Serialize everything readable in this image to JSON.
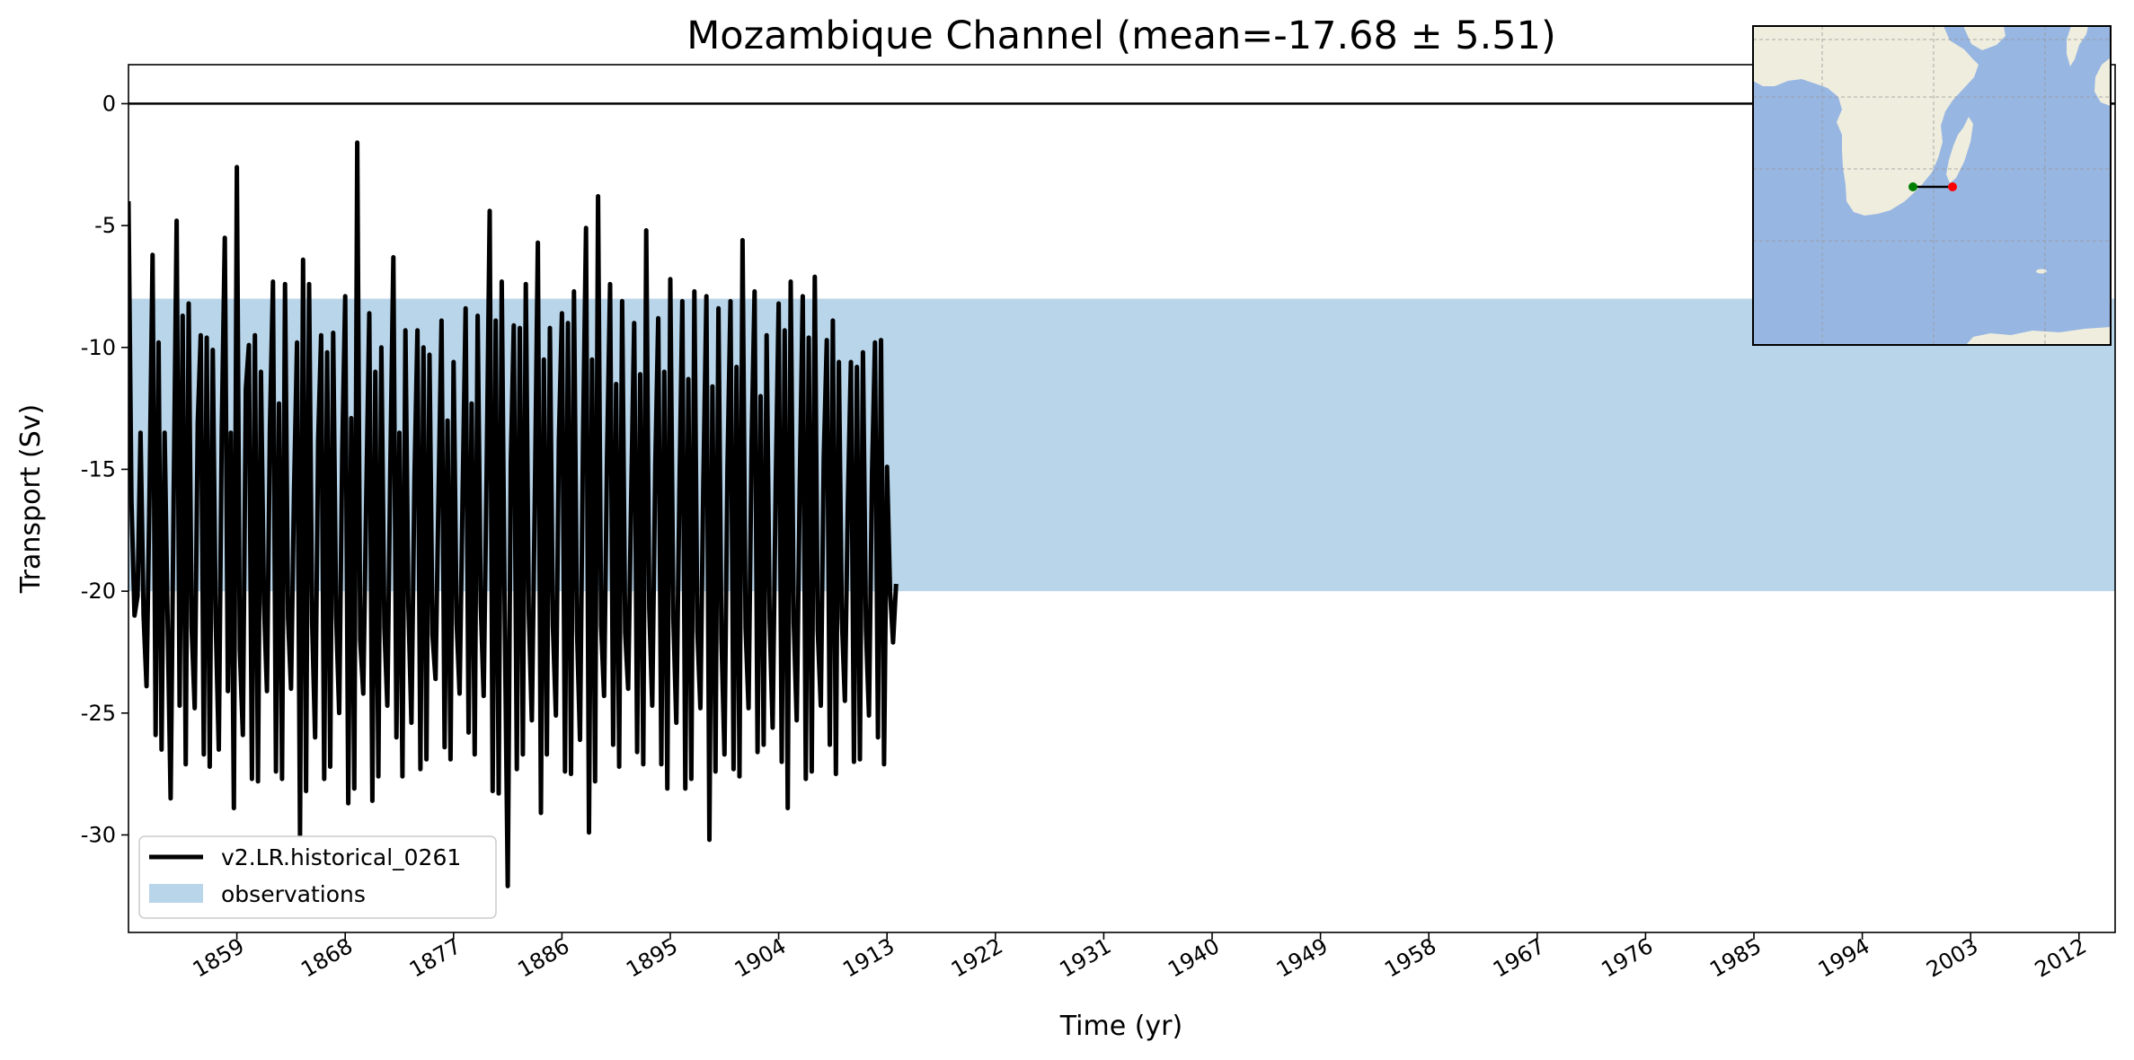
{
  "chart_data": {
    "type": "line",
    "title": "Mozambique Channel (mean=-17.68 ± 5.51)",
    "xlabel": "Time (yr)",
    "ylabel": "Transport (Sv)",
    "xlim": [
      1850,
      2015
    ],
    "ylim": [
      -34,
      1.6
    ],
    "y_ticks": [
      0,
      -5,
      -10,
      -15,
      -20,
      -25,
      -30
    ],
    "x_ticks": [
      1859,
      1868,
      1877,
      1886,
      1895,
      1904,
      1913,
      1922,
      1931,
      1940,
      1949,
      1958,
      1967,
      1976,
      1985,
      1994,
      2003,
      2012
    ],
    "grid": false,
    "legend_location": "lower-left",
    "reference_line": {
      "y": 0,
      "color": "#000000"
    },
    "observation_band": {
      "name": "observations",
      "y_range": [
        -8,
        -20
      ],
      "color": "#b9d5ea"
    },
    "series": [
      {
        "name": "v2.LR.historical_0261",
        "color": "#000000",
        "start_year": 1850,
        "samples_per_year": 4,
        "values": [
          -4.0,
          -16.3,
          -21.0,
          -20.2,
          -13.5,
          -21.0,
          -23.9,
          -16.0,
          -6.2,
          -25.9,
          -9.8,
          -26.5,
          -13.5,
          -21.3,
          -28.5,
          -16.1,
          -4.8,
          -24.7,
          -8.7,
          -27.1,
          -8.2,
          -21.5,
          -24.8,
          -13.1,
          -9.5,
          -26.7,
          -9.6,
          -27.2,
          -10.1,
          -21.3,
          -26.5,
          -13.4,
          -5.5,
          -24.1,
          -13.5,
          -28.9,
          -2.6,
          -22.4,
          -25.9,
          -11.7,
          -9.9,
          -27.7,
          -9.5,
          -27.8,
          -11.0,
          -20.5,
          -24.1,
          -13.3,
          -7.3,
          -27.4,
          -12.3,
          -27.7,
          -7.4,
          -21.1,
          -24.0,
          -15.8,
          -9.8,
          -30.0,
          -6.4,
          -28.2,
          -7.4,
          -21.3,
          -26.0,
          -13.8,
          -9.5,
          -27.7,
          -10.2,
          -27.2,
          -9.4,
          -21.0,
          -25.0,
          -14.3,
          -7.9,
          -28.7,
          -12.9,
          -28.1,
          -1.6,
          -22.0,
          -24.2,
          -16.2,
          -8.6,
          -28.6,
          -11.0,
          -27.6,
          -10.0,
          -21.5,
          -24.7,
          -14.9,
          -6.3,
          -26.0,
          -13.5,
          -27.6,
          -9.3,
          -20.6,
          -25.4,
          -15.3,
          -9.3,
          -27.3,
          -10.0,
          -26.9,
          -10.3,
          -21.8,
          -23.6,
          -16.0,
          -8.9,
          -26.4,
          -13.0,
          -26.9,
          -10.6,
          -21.3,
          -24.2,
          -16.0,
          -8.4,
          -25.8,
          -12.3,
          -26.7,
          -8.7,
          -20.5,
          -24.3,
          -15.1,
          -4.4,
          -28.2,
          -8.9,
          -28.3,
          -7.3,
          -21.3,
          -32.1,
          -14.7,
          -9.1,
          -27.3,
          -9.2,
          -26.7,
          -7.4,
          -20.9,
          -25.3,
          -16.0,
          -5.7,
          -29.1,
          -10.5,
          -26.7,
          -9.2,
          -21.4,
          -25.1,
          -13.8,
          -8.6,
          -27.4,
          -9.0,
          -27.5,
          -7.7,
          -21.6,
          -26.1,
          -13.7,
          -5.1,
          -29.9,
          -10.5,
          -27.8,
          -3.8,
          -21.4,
          -24.3,
          -14.5,
          -7.4,
          -26.3,
          -11.5,
          -27.2,
          -8.1,
          -21.7,
          -24.0,
          -16.1,
          -9.0,
          -26.6,
          -11.1,
          -27.1,
          -5.2,
          -20.7,
          -24.7,
          -14.8,
          -8.8,
          -27.1,
          -11.0,
          -28.1,
          -7.2,
          -21.1,
          -25.4,
          -16.0,
          -8.1,
          -28.1,
          -11.3,
          -27.7,
          -7.7,
          -21.6,
          -24.8,
          -15.5,
          -7.9,
          -30.2,
          -11.6,
          -27.4,
          -8.4,
          -21.9,
          -26.7,
          -15.0,
          -8.1,
          -27.3,
          -10.8,
          -27.6,
          -5.6,
          -21.5,
          -24.8,
          -13.9,
          -7.7,
          -26.6,
          -12.0,
          -26.3,
          -9.5,
          -21.2,
          -25.6,
          -15.7,
          -8.2,
          -27.0,
          -9.3,
          -28.9,
          -7.3,
          -21.3,
          -25.3,
          -15.6,
          -7.9,
          -27.7,
          -9.6,
          -27.4,
          -7.1,
          -21.6,
          -24.7,
          -14.5,
          -9.7,
          -26.3,
          -8.9,
          -27.5,
          -10.6,
          -21.1,
          -24.5,
          -16.4,
          -10.6,
          -27.0,
          -10.8,
          -26.9,
          -10.2,
          -21.6,
          -25.1,
          -15.2,
          -9.8,
          -26.0,
          -9.7,
          -27.1,
          -14.9,
          -20.0,
          -22.1,
          -19.7
        ]
      }
    ],
    "inset_map": {
      "land_color": "#efedde",
      "ocean_color": "#97b6e2",
      "section_start_marker": "#008000",
      "section_end_marker": "#ff0000"
    }
  }
}
